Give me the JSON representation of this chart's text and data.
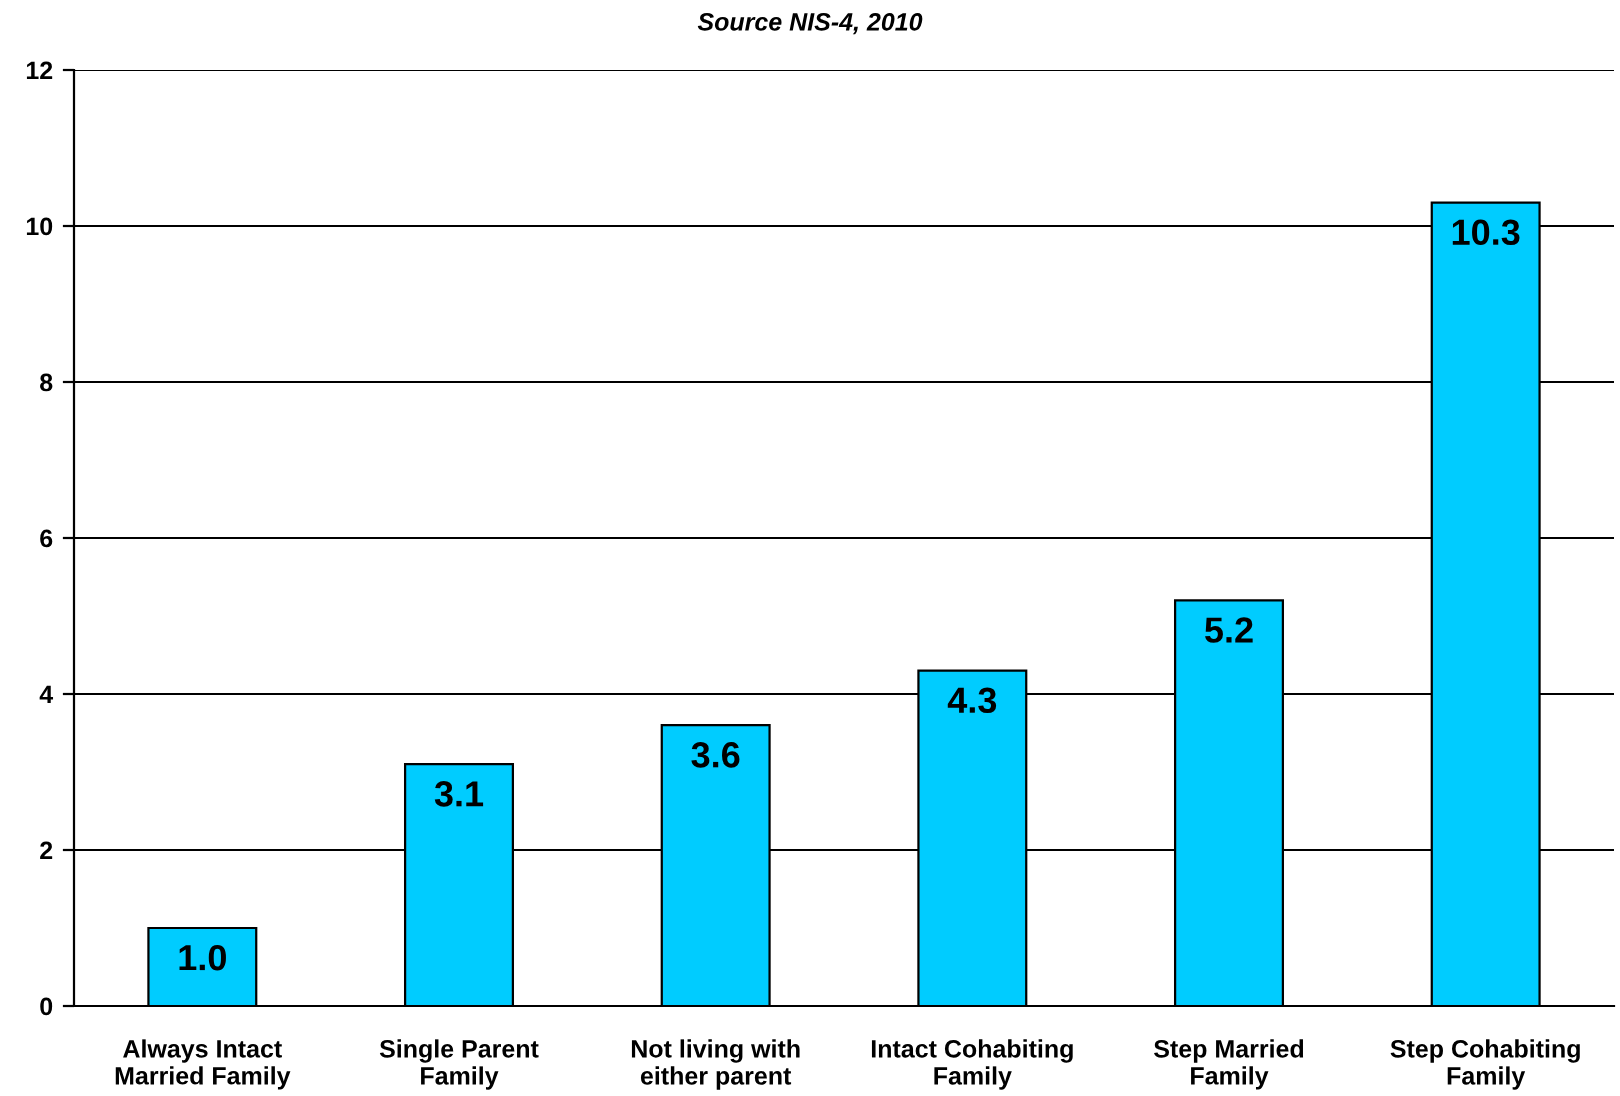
{
  "chart_data": {
    "type": "bar",
    "title": "Source NIS-4, 2010",
    "categories": [
      "Always Intact\nMarried Family",
      "Single Parent\nFamily",
      "Not living with\neither parent",
      "Intact Cohabiting\nFamily",
      "Step Married\nFamily",
      "Step Cohabiting\nFamily"
    ],
    "values": [
      1.0,
      3.1,
      3.6,
      4.3,
      5.2,
      10.3
    ],
    "color": "#00ccff",
    "value_labels": [
      "1.0",
      "3.1",
      "3.6",
      "4.3",
      "5.2",
      "10.3"
    ],
    "ylim": [
      0,
      12
    ],
    "yticks": [
      0,
      2,
      4,
      6,
      8,
      10,
      12
    ],
    "grid": "y"
  }
}
